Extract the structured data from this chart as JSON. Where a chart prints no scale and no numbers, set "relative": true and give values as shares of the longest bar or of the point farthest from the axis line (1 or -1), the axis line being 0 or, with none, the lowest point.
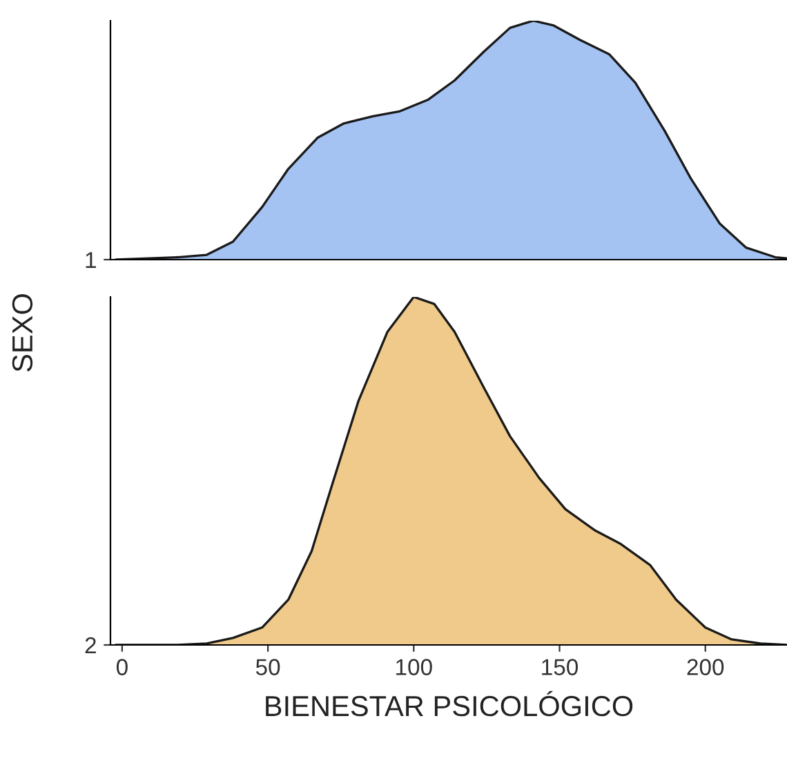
{
  "chart_data": [
    {
      "type": "area",
      "relative": true,
      "ylabel": "SEXO",
      "xlim": [
        -4,
        228
      ],
      "xticks": [
        0,
        50,
        100,
        150,
        200
      ],
      "tick_labels": "y",
      "x": [
        -2,
        19,
        29,
        38,
        48,
        57,
        67,
        76,
        86,
        95,
        105,
        114,
        124,
        133,
        141,
        148,
        157,
        167,
        176,
        186,
        195,
        205,
        214,
        224,
        228
      ],
      "series": [
        {
          "name": "1",
          "color": "#a4c3f2",
          "values": [
            0,
            0.01,
            0.02,
            0.075,
            0.22,
            0.38,
            0.51,
            0.57,
            0.6,
            0.62,
            0.67,
            0.75,
            0.87,
            0.97,
            1.0,
            0.98,
            0.92,
            0.86,
            0.74,
            0.54,
            0.34,
            0.15,
            0.05,
            0.01,
            0.005
          ]
        }
      ]
    },
    {
      "type": "area",
      "relative": true,
      "xlabel": "BIENESTAR PSICOLÓGICO",
      "xlim": [
        -4,
        228
      ],
      "xticks": [
        0,
        50,
        100,
        150,
        200
      ],
      "x": [
        -2,
        19,
        29,
        38,
        48,
        57,
        65,
        72,
        81,
        91,
        100,
        107,
        114,
        124,
        133,
        143,
        152,
        162,
        171,
        181,
        190,
        200,
        209,
        219,
        228
      ],
      "series": [
        {
          "name": "2",
          "color": "#f0ca8a",
          "values": [
            0,
            0,
            0.004,
            0.02,
            0.05,
            0.13,
            0.27,
            0.46,
            0.7,
            0.9,
            1.0,
            0.98,
            0.9,
            0.74,
            0.6,
            0.48,
            0.39,
            0.33,
            0.29,
            0.23,
            0.13,
            0.05,
            0.016,
            0.004,
            0
          ]
        }
      ]
    }
  ]
}
